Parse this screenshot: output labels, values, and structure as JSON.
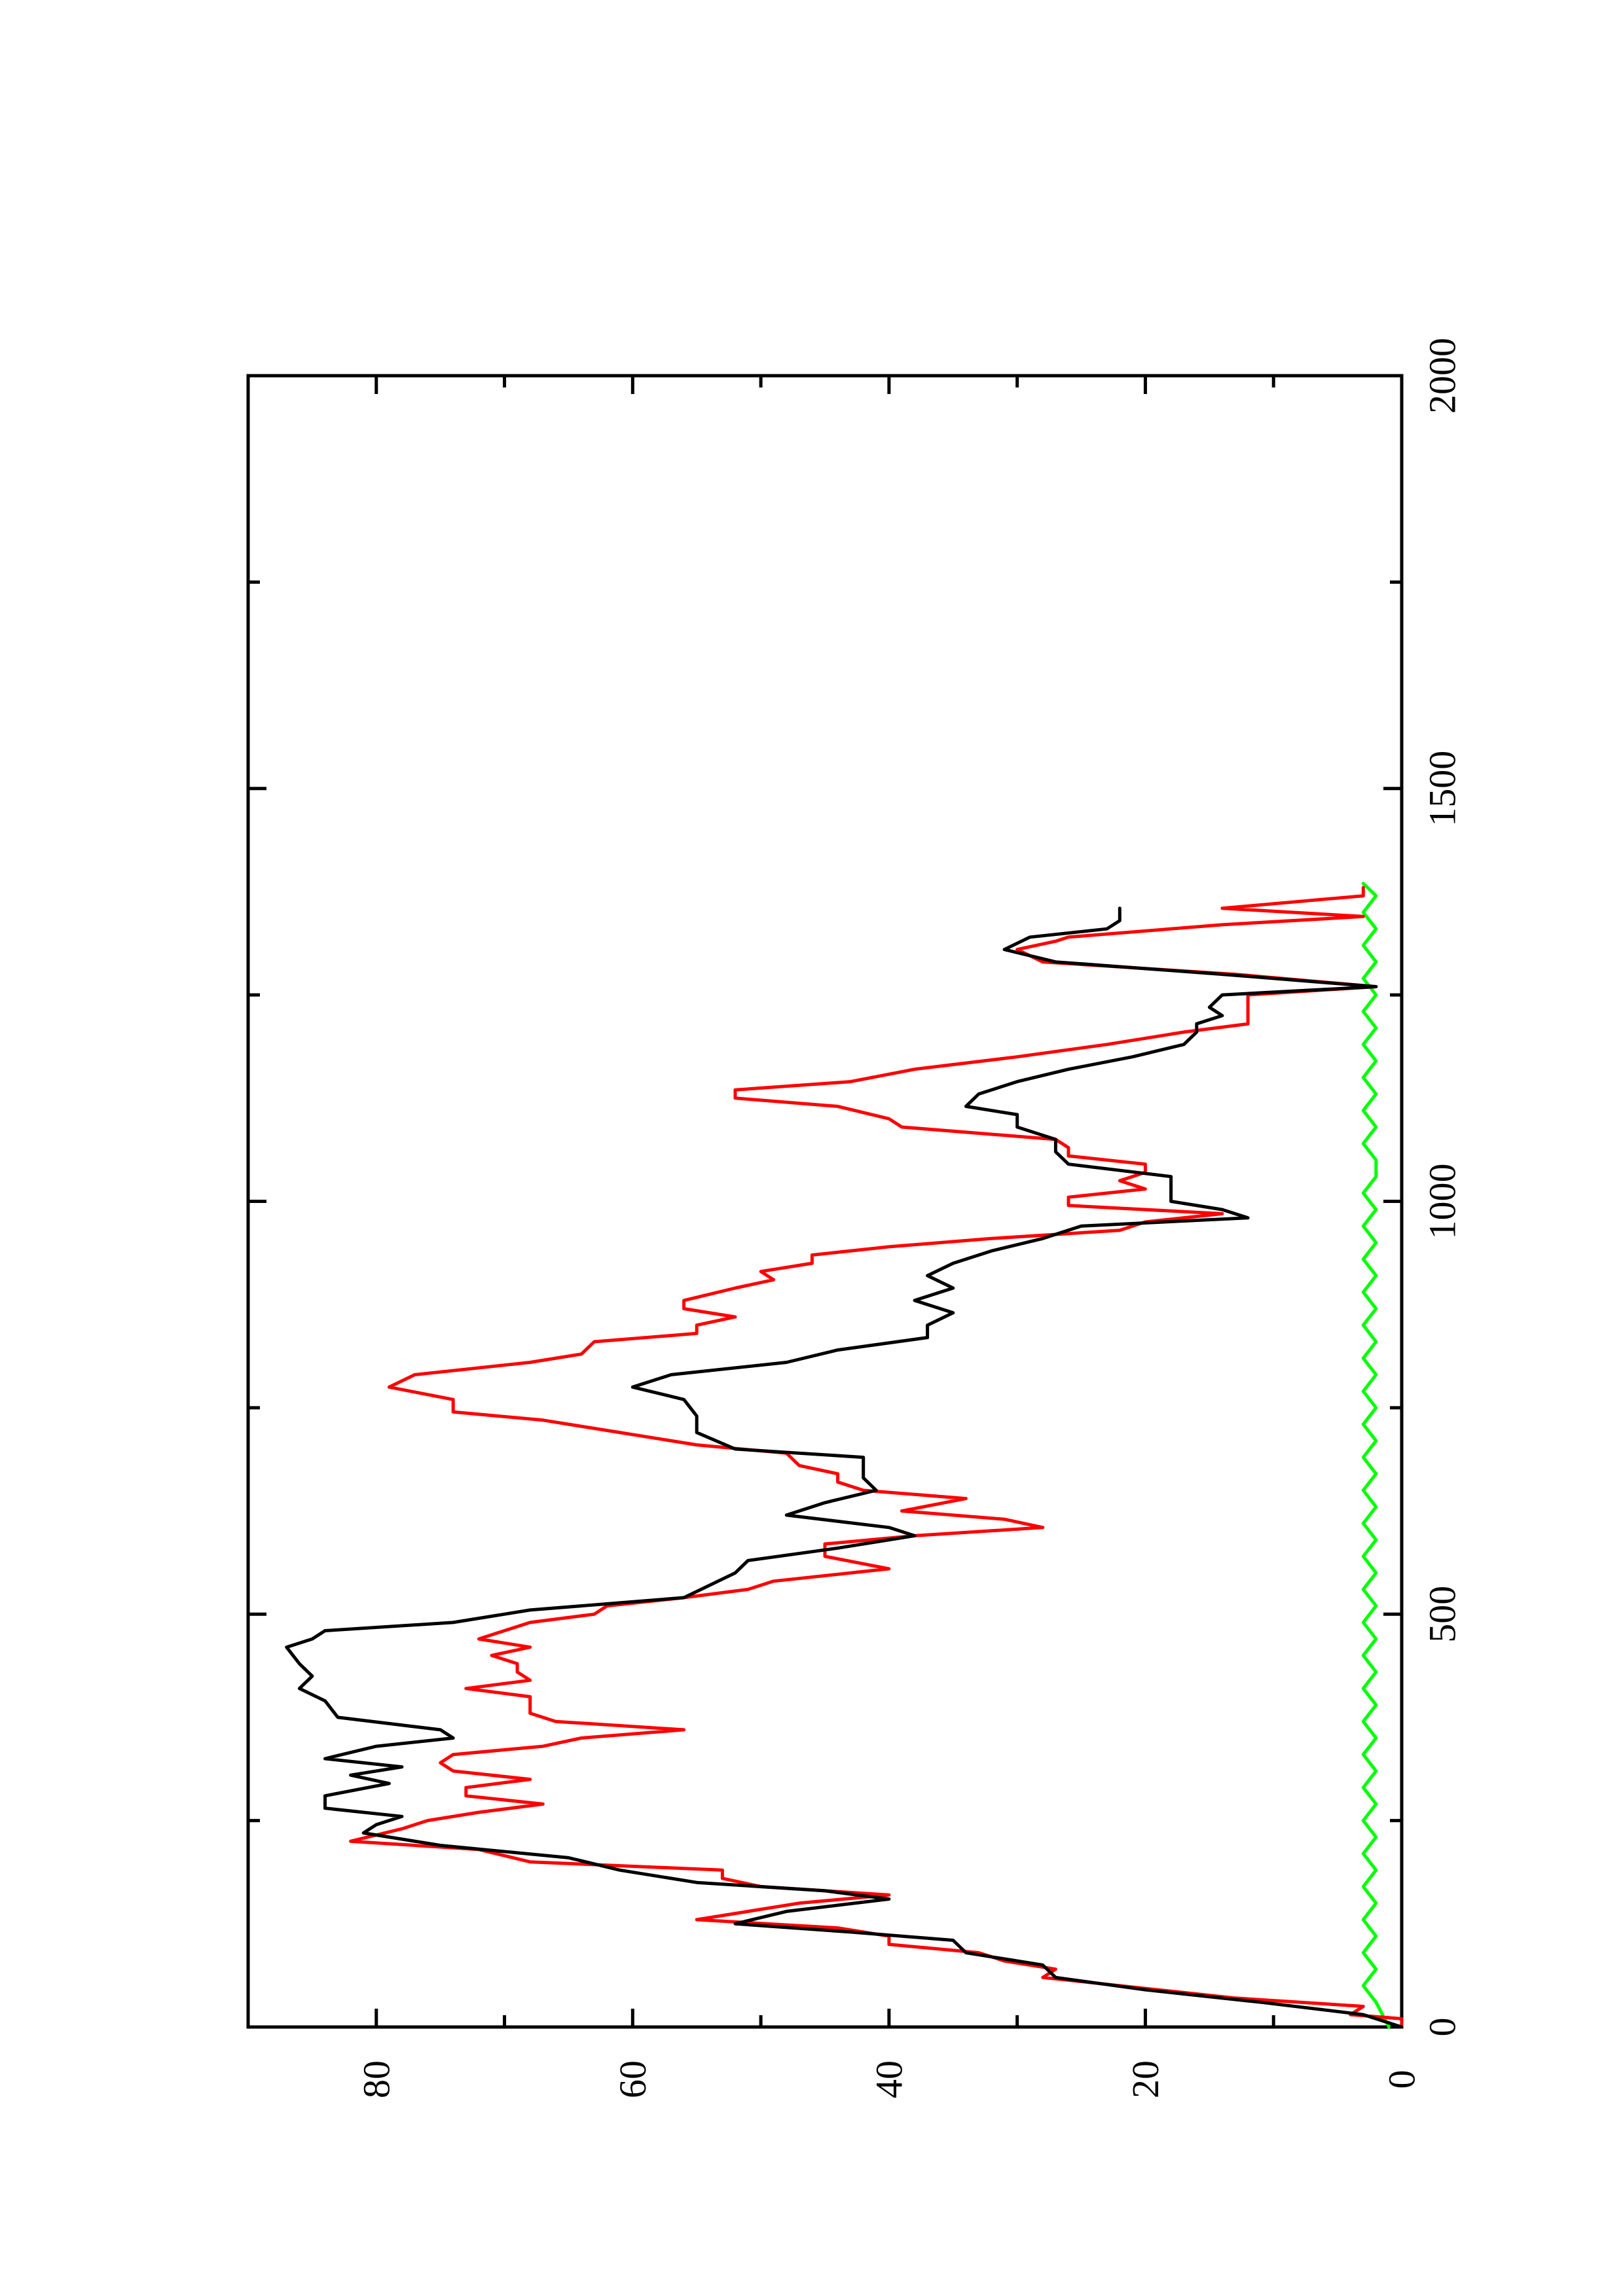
{
  "chart_data": {
    "type": "line",
    "title": "",
    "xlabel": "",
    "ylabel": "",
    "xlim": [
      0,
      2000
    ],
    "ylim": [
      0,
      90
    ],
    "orientation": "rotated-90-ccw",
    "grid": false,
    "x_ticks": [
      {
        "value": 0,
        "label": "0"
      },
      {
        "value": 500,
        "label": "500"
      },
      {
        "value": 1000,
        "label": "1000"
      },
      {
        "value": 1500,
        "label": "1500"
      },
      {
        "value": 2000,
        "label": "2000"
      }
    ],
    "x_minor_ticks": [
      250,
      750,
      1250,
      1750
    ],
    "y_ticks": [
      {
        "value": 0,
        "label": "0"
      },
      {
        "value": 20,
        "label": "20"
      },
      {
        "value": 40,
        "label": "40"
      },
      {
        "value": 60,
        "label": "60"
      },
      {
        "value": 80,
        "label": "80"
      }
    ],
    "y_minor_ticks": [
      10,
      30,
      50,
      70
    ],
    "series": [
      {
        "color": "#000000",
        "points": [
          [
            0,
            0
          ],
          [
            15,
            3
          ],
          [
            30,
            11
          ],
          [
            45,
            20
          ],
          [
            60,
            27
          ],
          [
            75,
            28
          ],
          [
            90,
            34
          ],
          [
            105,
            35
          ],
          [
            115,
            43
          ],
          [
            125,
            52
          ],
          [
            140,
            48
          ],
          [
            155,
            40
          ],
          [
            165,
            45
          ],
          [
            175,
            55
          ],
          [
            190,
            61
          ],
          [
            205,
            65
          ],
          [
            220,
            75
          ],
          [
            235,
            81
          ],
          [
            245,
            80
          ],
          [
            255,
            78
          ],
          [
            265,
            84
          ],
          [
            280,
            84
          ],
          [
            295,
            79
          ],
          [
            305,
            82
          ],
          [
            315,
            78
          ],
          [
            325,
            84
          ],
          [
            340,
            80
          ],
          [
            350,
            74
          ],
          [
            360,
            75
          ],
          [
            375,
            83
          ],
          [
            395,
            84
          ],
          [
            410,
            86
          ],
          [
            425,
            85
          ],
          [
            440,
            86
          ],
          [
            460,
            87
          ],
          [
            470,
            85
          ],
          [
            480,
            84
          ],
          [
            490,
            74
          ],
          [
            505,
            68
          ],
          [
            520,
            56
          ],
          [
            535,
            54
          ],
          [
            550,
            52
          ],
          [
            565,
            51
          ],
          [
            580,
            44
          ],
          [
            595,
            38
          ],
          [
            605,
            40
          ],
          [
            620,
            48
          ],
          [
            635,
            45
          ],
          [
            650,
            41
          ],
          [
            665,
            42
          ],
          [
            680,
            42
          ],
          [
            690,
            42
          ],
          [
            700,
            52
          ],
          [
            720,
            55
          ],
          [
            740,
            55
          ],
          [
            760,
            56
          ],
          [
            775,
            60
          ],
          [
            790,
            57
          ],
          [
            805,
            48
          ],
          [
            820,
            44
          ],
          [
            835,
            37
          ],
          [
            850,
            37
          ],
          [
            865,
            35
          ],
          [
            880,
            38
          ],
          [
            895,
            35
          ],
          [
            910,
            37
          ],
          [
            925,
            35
          ],
          [
            940,
            32
          ],
          [
            955,
            28
          ],
          [
            970,
            25
          ],
          [
            980,
            12
          ],
          [
            990,
            14
          ],
          [
            1000,
            18
          ],
          [
            1015,
            18
          ],
          [
            1030,
            18
          ],
          [
            1045,
            26
          ],
          [
            1060,
            27
          ],
          [
            1075,
            27
          ],
          [
            1090,
            30
          ],
          [
            1105,
            30
          ],
          [
            1115,
            34
          ],
          [
            1130,
            33
          ],
          [
            1145,
            30
          ],
          [
            1160,
            26
          ],
          [
            1175,
            21
          ],
          [
            1190,
            17
          ],
          [
            1205,
            16
          ],
          [
            1215,
            16
          ],
          [
            1225,
            14
          ],
          [
            1235,
            15
          ],
          [
            1250,
            14
          ],
          [
            1260,
            2
          ],
          [
            1275,
            14
          ],
          [
            1290,
            27
          ],
          [
            1305,
            31
          ],
          [
            1320,
            29
          ],
          [
            1330,
            23
          ],
          [
            1340,
            22
          ],
          [
            1355,
            22
          ]
        ]
      },
      {
        "color": "#ff0000",
        "points": [
          [
            0,
            0
          ],
          [
            10,
            0
          ],
          [
            15,
            4
          ],
          [
            25,
            3
          ],
          [
            35,
            13
          ],
          [
            45,
            19
          ],
          [
            60,
            28
          ],
          [
            70,
            27
          ],
          [
            80,
            31
          ],
          [
            90,
            33
          ],
          [
            100,
            40
          ],
          [
            110,
            40
          ],
          [
            120,
            44
          ],
          [
            130,
            55
          ],
          [
            150,
            47
          ],
          [
            160,
            40
          ],
          [
            170,
            50
          ],
          [
            180,
            53
          ],
          [
            190,
            53
          ],
          [
            200,
            68
          ],
          [
            215,
            72
          ],
          [
            225,
            82
          ],
          [
            240,
            78
          ],
          [
            250,
            76
          ],
          [
            260,
            72
          ],
          [
            270,
            67
          ],
          [
            280,
            73
          ],
          [
            290,
            73
          ],
          [
            300,
            68
          ],
          [
            310,
            74
          ],
          [
            320,
            75
          ],
          [
            330,
            74
          ],
          [
            340,
            67
          ],
          [
            350,
            64
          ],
          [
            360,
            56
          ],
          [
            370,
            66
          ],
          [
            380,
            68
          ],
          [
            400,
            68
          ],
          [
            410,
            73
          ],
          [
            420,
            68
          ],
          [
            430,
            69
          ],
          [
            440,
            69
          ],
          [
            450,
            71
          ],
          [
            460,
            68
          ],
          [
            470,
            72
          ],
          [
            490,
            68
          ],
          [
            500,
            63
          ],
          [
            510,
            62
          ],
          [
            520,
            56
          ],
          [
            530,
            51
          ],
          [
            540,
            49
          ],
          [
            555,
            40
          ],
          [
            570,
            45
          ],
          [
            585,
            45
          ],
          [
            595,
            38
          ],
          [
            605,
            28
          ],
          [
            615,
            31
          ],
          [
            625,
            39
          ],
          [
            640,
            34
          ],
          [
            650,
            42
          ],
          [
            660,
            44
          ],
          [
            670,
            44
          ],
          [
            680,
            47
          ],
          [
            695,
            48
          ],
          [
            705,
            55
          ],
          [
            725,
            63
          ],
          [
            735,
            67
          ],
          [
            745,
            74
          ],
          [
            760,
            74
          ],
          [
            775,
            79
          ],
          [
            790,
            77
          ],
          [
            805,
            68
          ],
          [
            815,
            64
          ],
          [
            830,
            63
          ],
          [
            840,
            55
          ],
          [
            850,
            55
          ],
          [
            860,
            52
          ],
          [
            870,
            56
          ],
          [
            880,
            56
          ],
          [
            895,
            52
          ],
          [
            905,
            49
          ],
          [
            915,
            50
          ],
          [
            925,
            46
          ],
          [
            935,
            46
          ],
          [
            945,
            40
          ],
          [
            955,
            32
          ],
          [
            965,
            22
          ],
          [
            975,
            20
          ],
          [
            985,
            14
          ],
          [
            995,
            26
          ],
          [
            1005,
            26
          ],
          [
            1015,
            20
          ],
          [
            1025,
            22
          ],
          [
            1035,
            20
          ],
          [
            1045,
            20
          ],
          [
            1055,
            26
          ],
          [
            1065,
            26
          ],
          [
            1075,
            27
          ],
          [
            1090,
            39
          ],
          [
            1100,
            40
          ],
          [
            1115,
            44
          ],
          [
            1125,
            52
          ],
          [
            1135,
            52
          ],
          [
            1145,
            43
          ],
          [
            1160,
            38
          ],
          [
            1175,
            30
          ],
          [
            1190,
            23
          ],
          [
            1205,
            17
          ],
          [
            1215,
            12
          ],
          [
            1225,
            12
          ],
          [
            1235,
            12
          ],
          [
            1250,
            12
          ],
          [
            1260,
            2
          ],
          [
            1275,
            13
          ],
          [
            1290,
            28
          ],
          [
            1305,
            30
          ],
          [
            1315,
            27
          ],
          [
            1320,
            26
          ],
          [
            1335,
            14
          ],
          [
            1345,
            3
          ],
          [
            1355,
            14
          ],
          [
            1370,
            3
          ],
          [
            1380,
            3
          ]
        ]
      },
      {
        "color": "#00ff00",
        "points": [
          [
            0,
            1
          ],
          [
            30,
            2
          ],
          [
            50,
            3
          ],
          [
            70,
            2
          ],
          [
            90,
            3
          ],
          [
            110,
            2
          ],
          [
            130,
            3
          ],
          [
            150,
            2
          ],
          [
            170,
            3
          ],
          [
            190,
            2
          ],
          [
            210,
            3
          ],
          [
            230,
            2
          ],
          [
            250,
            3
          ],
          [
            270,
            2
          ],
          [
            290,
            3
          ],
          [
            310,
            2
          ],
          [
            330,
            3
          ],
          [
            350,
            2
          ],
          [
            370,
            3
          ],
          [
            390,
            2
          ],
          [
            410,
            3
          ],
          [
            430,
            2
          ],
          [
            450,
            3
          ],
          [
            470,
            2
          ],
          [
            490,
            3
          ],
          [
            510,
            2
          ],
          [
            530,
            3
          ],
          [
            550,
            2
          ],
          [
            570,
            3
          ],
          [
            590,
            2
          ],
          [
            610,
            3
          ],
          [
            630,
            2
          ],
          [
            650,
            3
          ],
          [
            670,
            2
          ],
          [
            690,
            3
          ],
          [
            710,
            2
          ],
          [
            730,
            3
          ],
          [
            750,
            2
          ],
          [
            770,
            3
          ],
          [
            790,
            2
          ],
          [
            810,
            3
          ],
          [
            830,
            2
          ],
          [
            850,
            3
          ],
          [
            870,
            2
          ],
          [
            890,
            3
          ],
          [
            910,
            2
          ],
          [
            930,
            3
          ],
          [
            950,
            2
          ],
          [
            970,
            3
          ],
          [
            990,
            2
          ],
          [
            1010,
            3
          ],
          [
            1030,
            2
          ],
          [
            1050,
            2
          ],
          [
            1070,
            3
          ],
          [
            1090,
            2
          ],
          [
            1110,
            3
          ],
          [
            1130,
            2
          ],
          [
            1150,
            3
          ],
          [
            1170,
            2
          ],
          [
            1190,
            3
          ],
          [
            1210,
            2
          ],
          [
            1230,
            3
          ],
          [
            1250,
            2
          ],
          [
            1270,
            3
          ],
          [
            1290,
            2
          ],
          [
            1310,
            3
          ],
          [
            1330,
            2
          ],
          [
            1350,
            3
          ],
          [
            1370,
            2
          ],
          [
            1385,
            3
          ]
        ]
      }
    ]
  }
}
